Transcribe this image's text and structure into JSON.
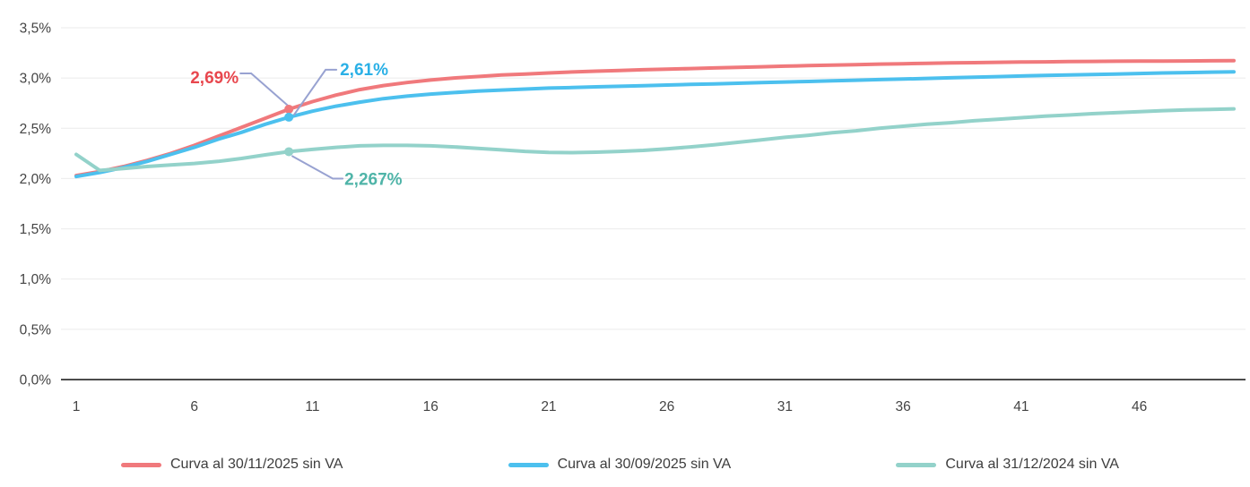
{
  "page": {
    "background": "#ffffff"
  },
  "chart_data": {
    "type": "line",
    "title": "",
    "xlabel": "",
    "ylabel": "",
    "grid": true,
    "legend_position": "bottom",
    "ylim": [
      0,
      3.5
    ],
    "x": [
      1,
      2,
      3,
      4,
      5,
      6,
      7,
      8,
      9,
      10,
      11,
      12,
      13,
      14,
      15,
      16,
      17,
      18,
      19,
      20,
      21,
      22,
      23,
      24,
      25,
      26,
      27,
      28,
      29,
      30,
      31,
      32,
      33,
      34,
      35,
      36,
      37,
      38,
      39,
      40,
      41,
      42,
      43,
      44,
      45,
      46,
      47,
      48,
      49,
      50
    ],
    "x_ticks": [
      1,
      6,
      11,
      16,
      21,
      26,
      31,
      36,
      41,
      46
    ],
    "y_ticks": [
      {
        "value": 0.0,
        "label": "0,0%"
      },
      {
        "value": 0.5,
        "label": "0,5%"
      },
      {
        "value": 1.0,
        "label": "1,0%"
      },
      {
        "value": 1.5,
        "label": "1,5%"
      },
      {
        "value": 2.0,
        "label": "2,0%"
      },
      {
        "value": 2.5,
        "label": "2,5%"
      },
      {
        "value": 3.0,
        "label": "3,0%"
      },
      {
        "value": 3.5,
        "label": "3,5%"
      }
    ],
    "series": [
      {
        "name": "Curva al 30/11/2025 sin VA",
        "color": "#f0797c",
        "values": [
          2.03,
          2.07,
          2.12,
          2.18,
          2.25,
          2.33,
          2.42,
          2.51,
          2.6,
          2.69,
          2.765,
          2.83,
          2.885,
          2.925,
          2.955,
          2.98,
          3.0,
          3.015,
          3.03,
          3.04,
          3.05,
          3.06,
          3.068,
          3.075,
          3.082,
          3.088,
          3.094,
          3.1,
          3.106,
          3.112,
          3.118,
          3.123,
          3.128,
          3.133,
          3.138,
          3.142,
          3.146,
          3.15,
          3.153,
          3.156,
          3.159,
          3.161,
          3.163,
          3.165,
          3.167,
          3.168,
          3.169,
          3.17,
          3.171,
          3.172
        ]
      },
      {
        "name": "Curva al 30/09/2025 sin VA",
        "color": "#4cc0ee",
        "values": [
          2.02,
          2.06,
          2.11,
          2.17,
          2.24,
          2.31,
          2.39,
          2.46,
          2.54,
          2.61,
          2.67,
          2.72,
          2.76,
          2.795,
          2.82,
          2.84,
          2.855,
          2.87,
          2.88,
          2.89,
          2.9,
          2.905,
          2.912,
          2.918,
          2.924,
          2.93,
          2.936,
          2.942,
          2.948,
          2.954,
          2.96,
          2.966,
          2.972,
          2.978,
          2.984,
          2.99,
          2.996,
          3.002,
          3.008,
          3.014,
          3.02,
          3.025,
          3.03,
          3.035,
          3.04,
          3.045,
          3.05,
          3.054,
          3.058,
          3.062
        ]
      },
      {
        "name": "Curva al 31/12/2024 sin VA",
        "color": "#93d2ca",
        "values": [
          2.24,
          2.08,
          2.1,
          2.12,
          2.135,
          2.15,
          2.17,
          2.2,
          2.235,
          2.267,
          2.29,
          2.31,
          2.325,
          2.33,
          2.33,
          2.325,
          2.315,
          2.3,
          2.285,
          2.27,
          2.26,
          2.258,
          2.262,
          2.27,
          2.28,
          2.295,
          2.315,
          2.335,
          2.36,
          2.385,
          2.41,
          2.43,
          2.455,
          2.475,
          2.5,
          2.52,
          2.54,
          2.555,
          2.575,
          2.59,
          2.605,
          2.62,
          2.632,
          2.645,
          2.655,
          2.665,
          2.675,
          2.682,
          2.688,
          2.693
        ]
      }
    ],
    "annotations": [
      {
        "series_index": 0,
        "x": 10,
        "value": 2.69,
        "label": "2,69%",
        "text_color": "#e8474e",
        "placement": "upper-left"
      },
      {
        "series_index": 1,
        "x": 10,
        "value": 2.61,
        "label": "2,61%",
        "text_color": "#2ab0e6",
        "placement": "upper-right"
      },
      {
        "series_index": 2,
        "x": 10,
        "value": 2.267,
        "label": "2,267%",
        "text_color": "#4fb4a8",
        "placement": "lower-right"
      }
    ],
    "colors": {
      "grid": "#ebebeb",
      "axis": "#4c4c4c",
      "tick_text": "#444444",
      "callout": "#98a2d1"
    }
  }
}
